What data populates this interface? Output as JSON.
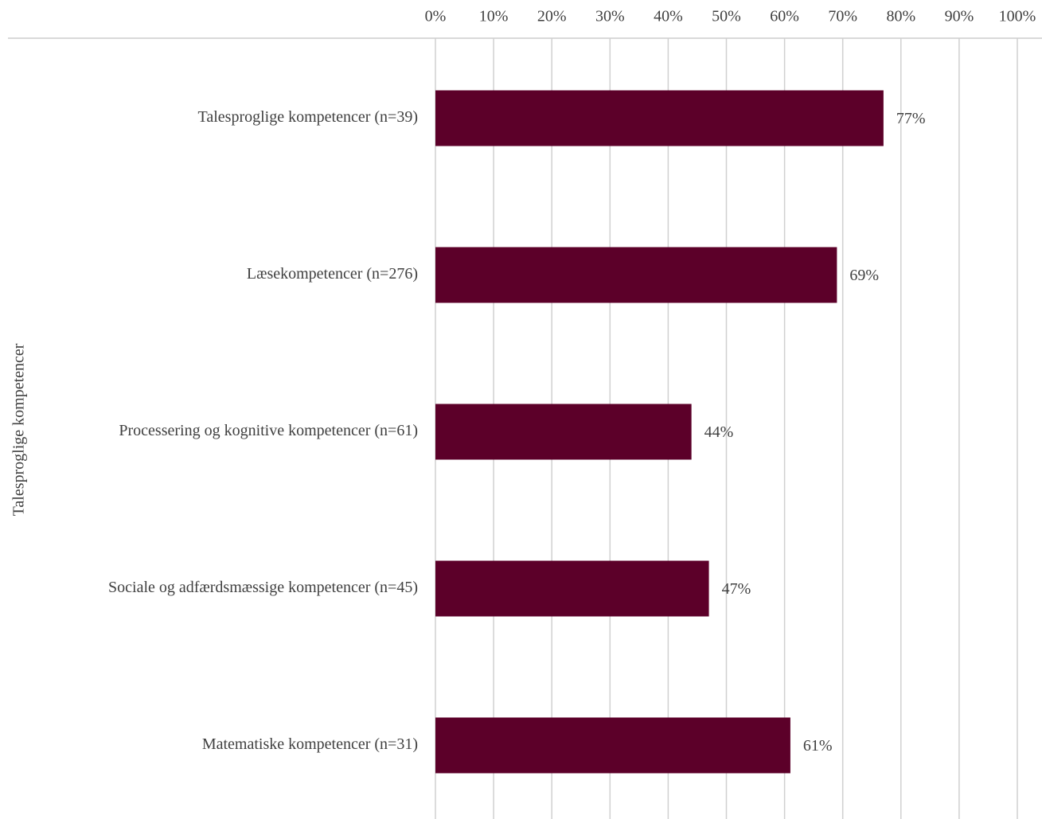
{
  "chart_data": {
    "type": "bar",
    "orientation": "horizontal",
    "y_axis_label": "Talesproglige kompetencer",
    "categories": [
      "Talesproglige kompetencer (n=39)",
      "Læsekompetencer (n=276)",
      "Processering og kognitive kompetencer (n=61)",
      "Sociale og adfærdsmæssige kompetencer (n=45)",
      "Matematiske kompetencer (n=31)"
    ],
    "values": [
      77,
      69,
      44,
      47,
      61
    ],
    "value_labels": [
      "77%",
      "69%",
      "44%",
      "47%",
      "61%"
    ],
    "color": "#5c0029",
    "xlim": [
      0,
      100
    ],
    "xticks": [
      {
        "value": 0,
        "label": "0%"
      },
      {
        "value": 10,
        "label": "10%"
      },
      {
        "value": 20,
        "label": "20%"
      },
      {
        "value": 30,
        "label": "30%"
      },
      {
        "value": 40,
        "label": "40%"
      },
      {
        "value": 50,
        "label": "50%"
      },
      {
        "value": 60,
        "label": "60%"
      },
      {
        "value": 70,
        "label": "70%"
      },
      {
        "value": 80,
        "label": "80%"
      },
      {
        "value": 90,
        "label": "90%"
      },
      {
        "value": 100,
        "label": "100%"
      }
    ],
    "grid": true
  }
}
